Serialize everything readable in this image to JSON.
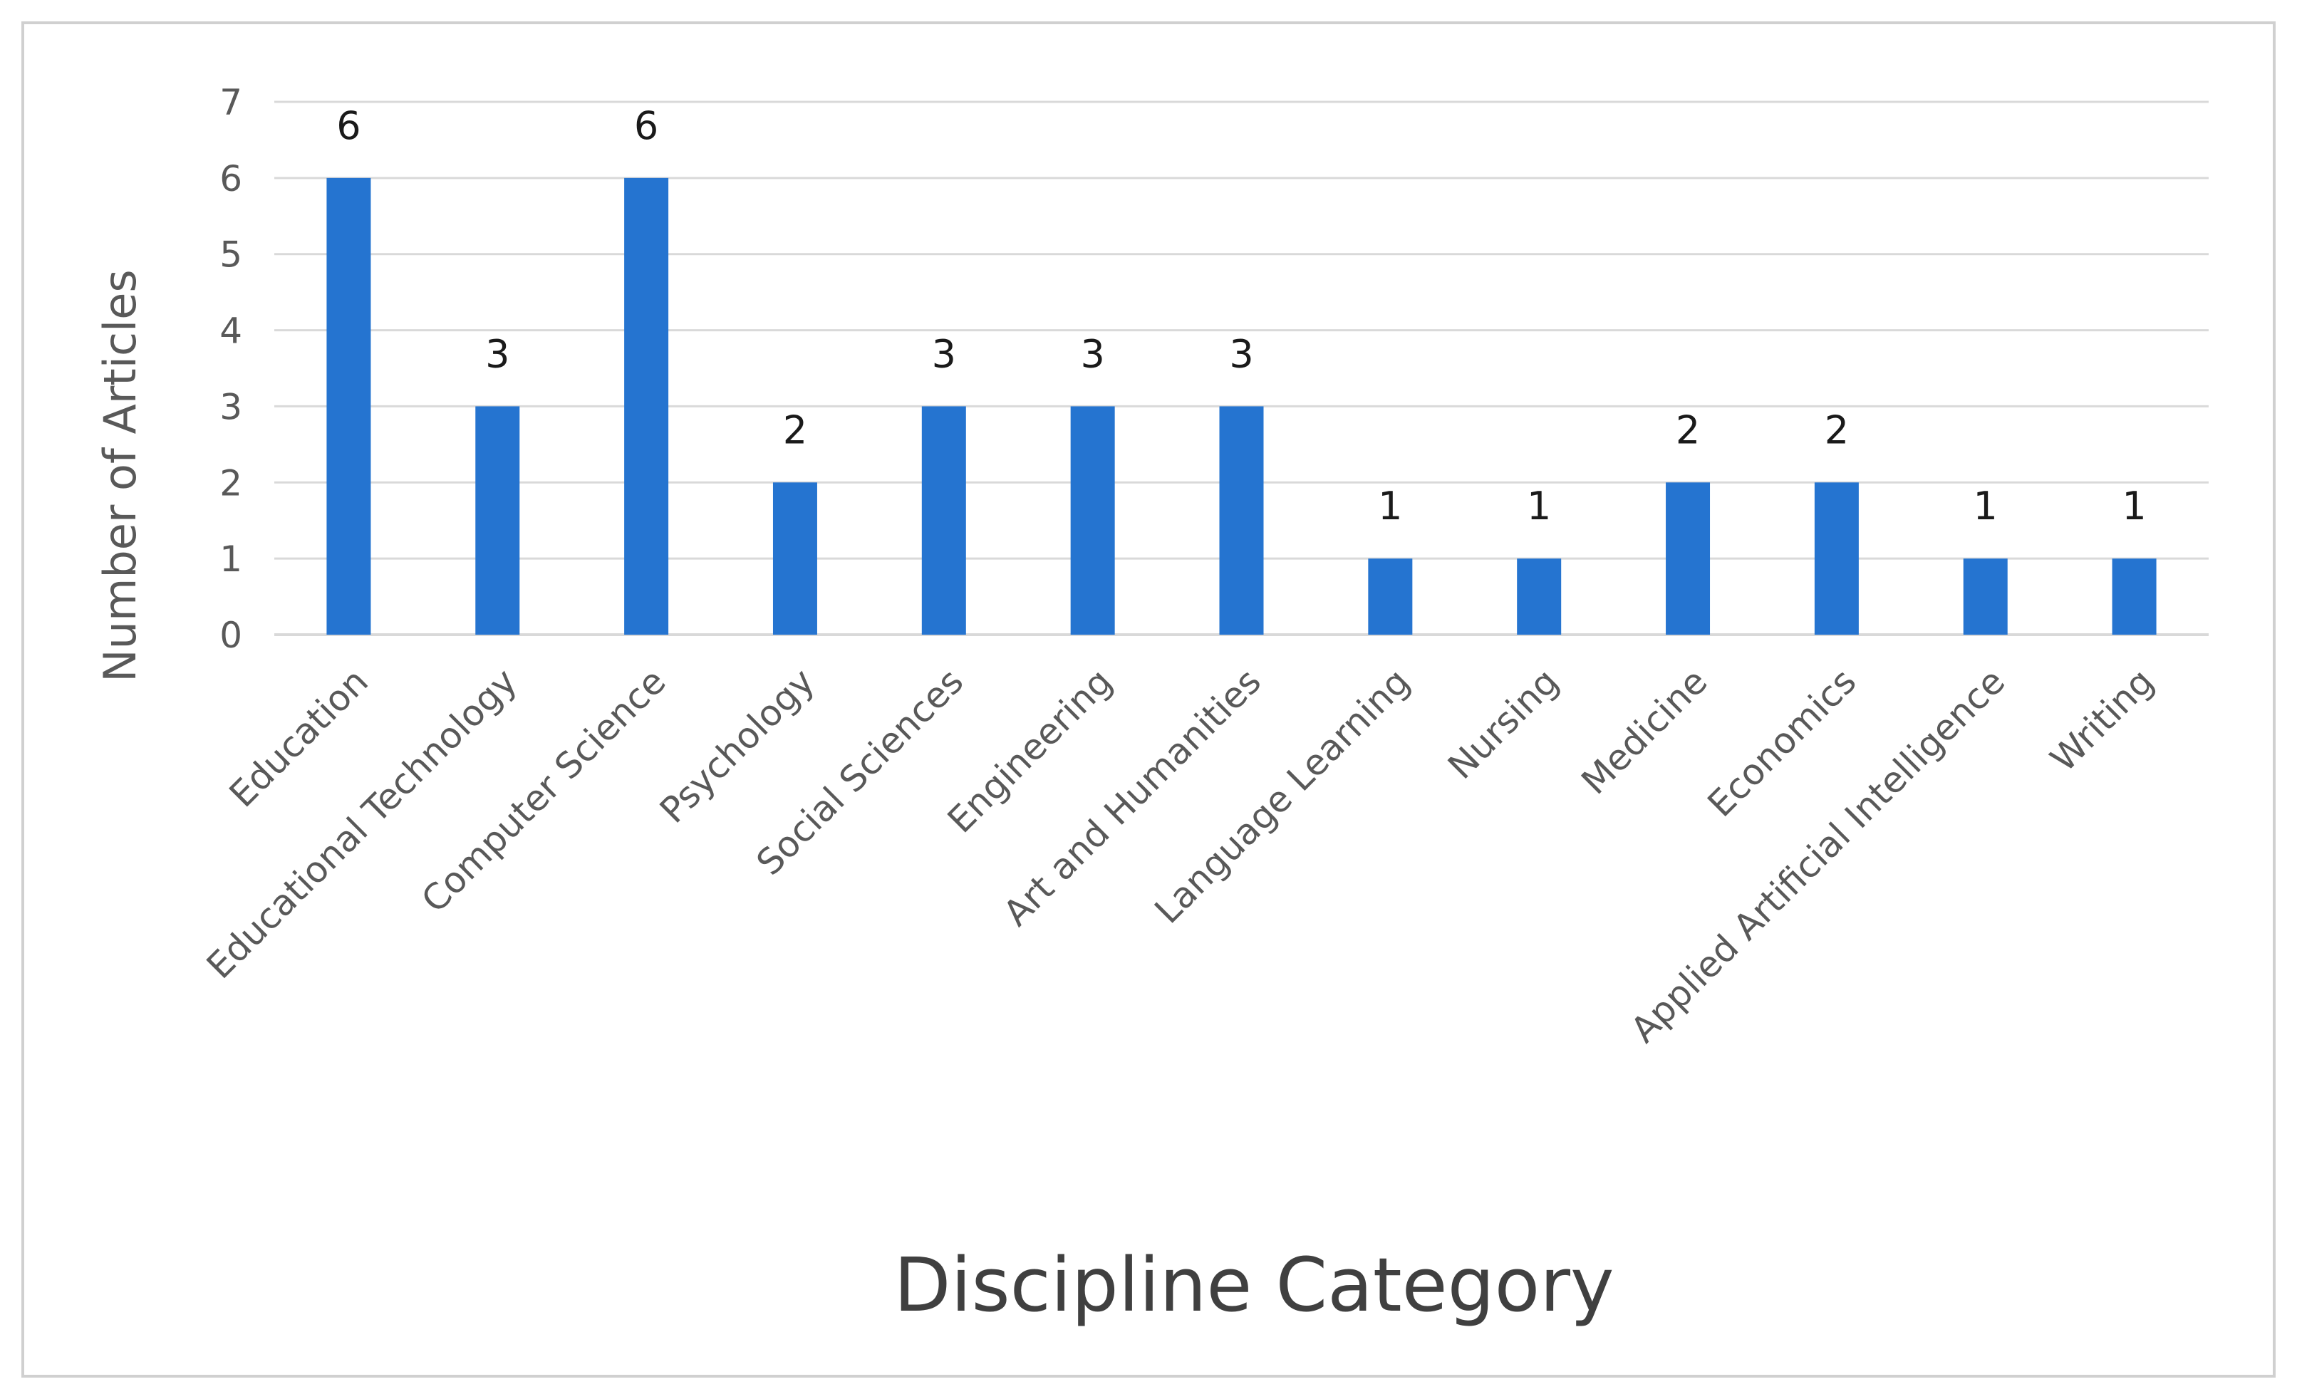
{
  "chart_data": {
    "type": "bar",
    "title": "",
    "xlabel": "Discipline Category",
    "ylabel": "Number of Articles",
    "categories": [
      "Education",
      "Educational Technology",
      "Computer Science",
      "Psychology",
      "Social Sciences",
      "Engineering",
      "Art and Humanities",
      "Language Learning",
      "Nursing",
      "Medicine",
      "Economics",
      "Applied Artificial Intelligence",
      "Writing"
    ],
    "values": [
      6,
      3,
      6,
      2,
      3,
      3,
      3,
      1,
      1,
      2,
      2,
      1,
      1
    ],
    "ylim": [
      0,
      7
    ],
    "yticks": [
      "0",
      "1",
      "2",
      "3",
      "4",
      "5",
      "6",
      "7"
    ],
    "data_labels": [
      "6",
      "3",
      "6",
      "2",
      "3",
      "3",
      "3",
      "1",
      "1",
      "2",
      "2",
      "1",
      "1"
    ],
    "grid": true,
    "legend": "none",
    "bar_color": "#2574d0",
    "grid_color": "#d9d9d9",
    "frame_color": "#d0d0d0"
  }
}
